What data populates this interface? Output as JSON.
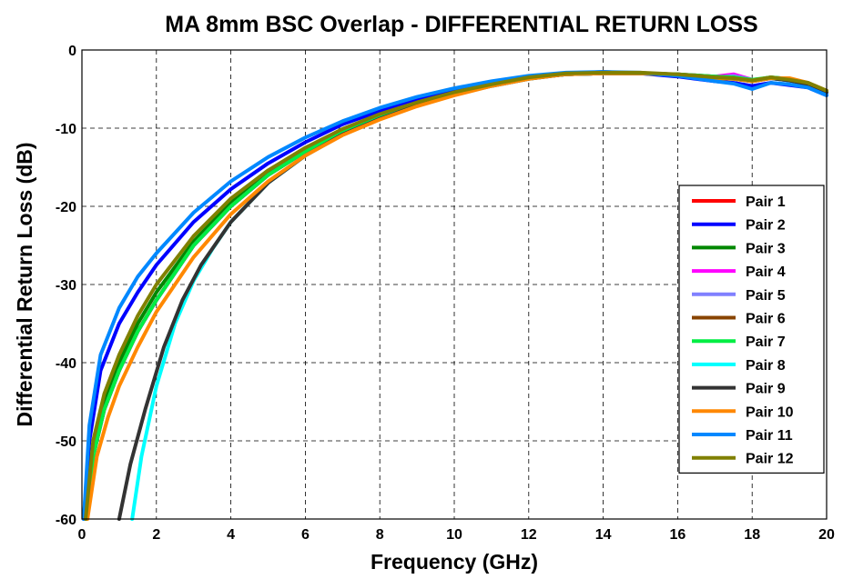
{
  "chart_data": {
    "type": "line",
    "title": "MA 8mm BSC Overlap - DIFFERENTIAL RETURN LOSS",
    "xlabel": "Frequency (GHz)",
    "ylabel": "Differential Return Loss (dB)",
    "xlim": [
      0,
      20
    ],
    "ylim": [
      -60,
      0
    ],
    "xticks": [
      0,
      2,
      4,
      6,
      8,
      10,
      12,
      14,
      16,
      18,
      20
    ],
    "yticks": [
      0,
      -10,
      -20,
      -30,
      -40,
      -50,
      -60
    ],
    "grid": true,
    "legend_position": "bottom-right",
    "series": [
      {
        "name": "Pair 1",
        "color": "#ff0000",
        "x": [
          0.1,
          0.3,
          0.6,
          1,
          1.5,
          2,
          3,
          4,
          5,
          6,
          7,
          8,
          9,
          10,
          11,
          12,
          13,
          14,
          15,
          16,
          17,
          17.5,
          18,
          18.5,
          19,
          19.5,
          20
        ],
        "y": [
          -60,
          -52,
          -46,
          -41,
          -36,
          -32,
          -25,
          -20,
          -16,
          -13,
          -10.5,
          -8.5,
          -7,
          -5.5,
          -4.5,
          -3.6,
          -3.1,
          -3,
          -3,
          -3.2,
          -3.6,
          -3.4,
          -4,
          -3.6,
          -3.8,
          -4.4,
          -5.5
        ]
      },
      {
        "name": "Pair 2",
        "color": "#0000ff",
        "x": [
          0.05,
          0.2,
          0.5,
          1,
          1.5,
          2,
          3,
          4,
          5,
          6,
          7,
          8,
          9,
          10,
          11,
          12,
          13,
          14,
          15,
          16,
          17,
          17.5,
          18,
          18.5,
          19,
          19.5,
          20
        ],
        "y": [
          -60,
          -50,
          -41,
          -35,
          -31,
          -27.5,
          -22,
          -17.8,
          -14.5,
          -11.8,
          -9.5,
          -7.8,
          -6.3,
          -5.1,
          -4.1,
          -3.4,
          -3,
          -2.8,
          -3,
          -3.4,
          -4,
          -4.2,
          -4.6,
          -4.2,
          -4.5,
          -4.8,
          -5.8
        ]
      },
      {
        "name": "Pair 3",
        "color": "#008800",
        "x": [
          0.1,
          0.3,
          0.6,
          1,
          1.5,
          2,
          3,
          4,
          5,
          6,
          7,
          8,
          9,
          10,
          11,
          12,
          13,
          14,
          15,
          16,
          17,
          17.5,
          18,
          18.5,
          19,
          19.5,
          20
        ],
        "y": [
          -60,
          -51,
          -45,
          -40,
          -35,
          -31,
          -24.5,
          -19.5,
          -15.8,
          -12.8,
          -10.3,
          -8.4,
          -6.9,
          -5.5,
          -4.5,
          -3.6,
          -3.1,
          -3,
          -3,
          -3.1,
          -3.5,
          -3.6,
          -3.9,
          -3.5,
          -3.8,
          -4.2,
          -5.3
        ]
      },
      {
        "name": "Pair 4",
        "color": "#ff00ff",
        "x": [
          0.1,
          0.3,
          0.6,
          1,
          1.5,
          2,
          3,
          4,
          5,
          6,
          7,
          8,
          9,
          10,
          11,
          12,
          13,
          14,
          15,
          16,
          17,
          17.5,
          18,
          18.5,
          19,
          19.5,
          20
        ],
        "y": [
          -60,
          -52,
          -46,
          -41,
          -36,
          -32,
          -25,
          -20,
          -16,
          -13,
          -10.5,
          -8.6,
          -7,
          -5.6,
          -4.5,
          -3.6,
          -3.1,
          -3,
          -3,
          -3.1,
          -3.4,
          -3.1,
          -3.8,
          -3.6,
          -3.9,
          -4.3,
          -5.4
        ]
      },
      {
        "name": "Pair 5",
        "color": "#8080ff",
        "x": [
          0.1,
          0.3,
          0.6,
          1,
          1.5,
          2,
          3,
          4,
          5,
          6,
          7,
          8,
          9,
          10,
          11,
          12,
          13,
          14,
          15,
          16,
          17,
          17.5,
          18,
          18.5,
          19,
          19.5,
          20
        ],
        "y": [
          -60,
          -52,
          -46,
          -41,
          -36,
          -32,
          -25,
          -20,
          -16,
          -13,
          -10.5,
          -8.6,
          -7,
          -5.6,
          -4.5,
          -3.6,
          -3.1,
          -3,
          -3,
          -3.1,
          -3.5,
          -3.3,
          -3.8,
          -3.6,
          -3.9,
          -4.4,
          -5.5
        ]
      },
      {
        "name": "Pair 6",
        "color": "#884400",
        "x": [
          0.1,
          0.3,
          0.6,
          1,
          1.5,
          2,
          3,
          4,
          5,
          6,
          7,
          8,
          9,
          10,
          11,
          12,
          13,
          14,
          15,
          16,
          17,
          17.5,
          18,
          18.5,
          19,
          19.5,
          20
        ],
        "y": [
          -60,
          -52,
          -46,
          -41,
          -36,
          -32,
          -25,
          -20,
          -16,
          -13,
          -10.5,
          -8.6,
          -7,
          -5.6,
          -4.5,
          -3.6,
          -3.1,
          -3,
          -3,
          -3.1,
          -3.4,
          -3.5,
          -3.9,
          -3.5,
          -3.7,
          -4.2,
          -5.3
        ]
      },
      {
        "name": "Pair 7",
        "color": "#00ee44",
        "x": [
          0.1,
          0.3,
          0.6,
          1,
          1.5,
          2,
          3,
          4,
          5,
          6,
          7,
          8,
          9,
          10,
          11,
          12,
          13,
          14,
          15,
          16,
          17,
          17.5,
          18,
          18.5,
          19,
          19.5,
          20
        ],
        "y": [
          -60,
          -52,
          -46,
          -41,
          -36,
          -32,
          -25,
          -20,
          -16,
          -13,
          -10.5,
          -8.6,
          -7,
          -5.6,
          -4.5,
          -3.6,
          -3.1,
          -3,
          -3,
          -3.1,
          -3.4,
          -3.5,
          -3.8,
          -3.5,
          -3.7,
          -4.2,
          -5.3
        ]
      },
      {
        "name": "Pair 8",
        "color": "#00ffff",
        "x": [
          1.35,
          1.6,
          2,
          2.5,
          3,
          3.5,
          4,
          5,
          6,
          7,
          8,
          9,
          10,
          11,
          12,
          13,
          14,
          15,
          16,
          17,
          17.5,
          18,
          18.5,
          19,
          19.5,
          20
        ],
        "y": [
          -60,
          -52,
          -43,
          -35,
          -29.5,
          -25.5,
          -22,
          -17,
          -13.5,
          -10.8,
          -8.8,
          -7.1,
          -5.7,
          -4.6,
          -3.7,
          -3.1,
          -3,
          -3,
          -3.2,
          -3.6,
          -3.7,
          -4,
          -3.6,
          -3.9,
          -4.4,
          -5.4
        ]
      },
      {
        "name": "Pair 9",
        "color": "#333333",
        "x": [
          1,
          1.3,
          1.7,
          2.2,
          2.7,
          3.2,
          4,
          5,
          6,
          7,
          8,
          9,
          10,
          11,
          12,
          13,
          14,
          15,
          16,
          17,
          17.5,
          18,
          18.5,
          19,
          19.5,
          20
        ],
        "y": [
          -60,
          -53,
          -46,
          -38,
          -32,
          -27.5,
          -22,
          -17,
          -13.5,
          -10.8,
          -8.8,
          -7.1,
          -5.7,
          -4.6,
          -3.7,
          -3.1,
          -3,
          -3,
          -3.2,
          -3.6,
          -3.7,
          -4,
          -3.6,
          -3.9,
          -4.4,
          -5.4
        ]
      },
      {
        "name": "Pair 10",
        "color": "#ff8800",
        "x": [
          0.15,
          0.4,
          0.7,
          1,
          1.5,
          2,
          3,
          4,
          5,
          6,
          7,
          8,
          9,
          10,
          11,
          12,
          13,
          14,
          15,
          16,
          17,
          17.5,
          18,
          18.5,
          19,
          19.5,
          20
        ],
        "y": [
          -60,
          -52,
          -47,
          -43,
          -38,
          -33.5,
          -26.5,
          -21,
          -16.8,
          -13.5,
          -10.9,
          -8.9,
          -7.2,
          -5.8,
          -4.6,
          -3.7,
          -3.1,
          -3,
          -3,
          -3.2,
          -3.6,
          -3.7,
          -4,
          -3.6,
          -3.6,
          -4.2,
          -5.2
        ]
      },
      {
        "name": "Pair 11",
        "color": "#0088ff",
        "x": [
          0.05,
          0.2,
          0.5,
          1,
          1.5,
          2,
          3,
          4,
          5,
          6,
          7,
          8,
          9,
          10,
          11,
          12,
          13,
          14,
          15,
          16,
          17,
          17.5,
          18,
          18.5,
          19,
          19.5,
          20
        ],
        "y": [
          -60,
          -48,
          -39,
          -33,
          -29,
          -26,
          -20.8,
          -16.8,
          -13.7,
          -11.2,
          -9.1,
          -7.4,
          -6,
          -4.9,
          -4,
          -3.3,
          -2.9,
          -2.8,
          -2.9,
          -3.3,
          -4,
          -4.3,
          -5,
          -4.2,
          -4.4,
          -4.8,
          -5.8
        ]
      },
      {
        "name": "Pair 12",
        "color": "#808000",
        "x": [
          0.1,
          0.3,
          0.6,
          1,
          1.5,
          2,
          3,
          4,
          5,
          6,
          7,
          8,
          9,
          10,
          11,
          12,
          13,
          14,
          15,
          16,
          17,
          17.5,
          18,
          18.5,
          19,
          19.5,
          20
        ],
        "y": [
          -60,
          -50,
          -44,
          -39,
          -34,
          -30,
          -23.8,
          -19,
          -15.4,
          -12.5,
          -10.1,
          -8.2,
          -6.7,
          -5.4,
          -4.4,
          -3.5,
          -3,
          -2.9,
          -2.9,
          -3.1,
          -3.5,
          -3.6,
          -3.9,
          -3.5,
          -3.8,
          -4.2,
          -5.2
        ]
      }
    ]
  }
}
